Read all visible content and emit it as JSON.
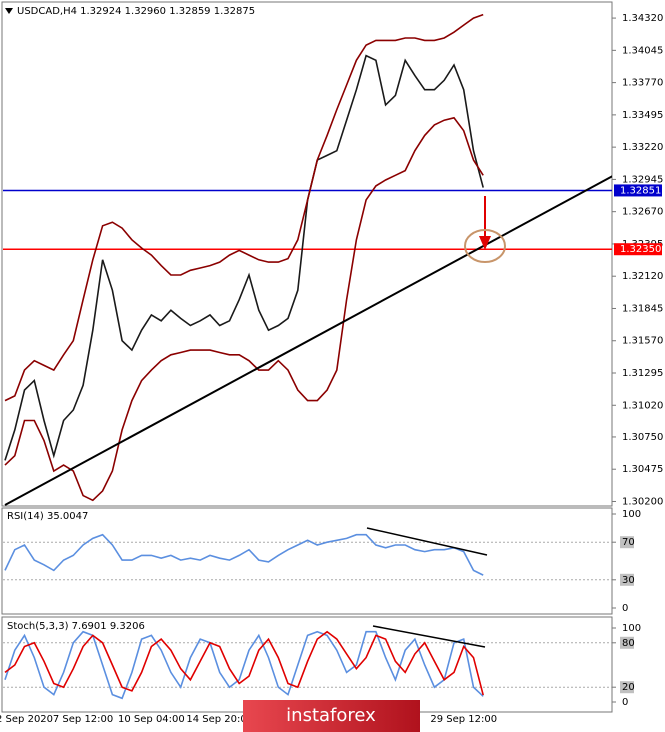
{
  "chart_data": [
    {
      "type": "line",
      "title": "USDCAD,H4 1.32924 1.32960 1.32859 1.32875",
      "ylim": [
        1.3017,
        1.3444
      ],
      "yticks": [
        {
          "value": 1.3432,
          "label": "1.34320"
        },
        1.34045,
        {
          "value": 1.3377,
          "label": "1.33770"
        },
        1.33495,
        {
          "value": 1.3322,
          "label": "1.33220"
        },
        1.32945,
        {
          "value": 1.3267,
          "label": "1.32670"
        },
        1.32395,
        {
          "value": 1.3212,
          "label": "1.32120"
        },
        1.31845,
        {
          "value": 1.3157,
          "label": "1.31570"
        },
        1.31295,
        {
          "value": 1.3102,
          "label": "1.31020"
        },
        {
          "value": 1.3075,
          "label": "1.30750"
        },
        1.30475,
        {
          "value": 1.302,
          "label": "1.30200"
        }
      ],
      "grid": false,
      "levels": [
        {
          "value": 1.32851,
          "color": "#0000cc"
        },
        {
          "value": 1.3235,
          "label": "1.32350",
          "color": "#ff0000"
        }
      ],
      "series": [
        {
          "color": "#1a1a1a",
          "values": [
            1.3055,
            1.3081,
            1.3115,
            1.3123,
            1.3089,
            1.3059,
            1.3089,
            1.3098,
            1.3119,
            1.3166,
            1.3226,
            1.32,
            1.3157,
            1.3149,
            1.3166,
            1.3179,
            1.3174,
            1.3183,
            1.3176,
            1.317,
            1.3174,
            1.3179,
            1.317,
            1.3174,
            1.3192,
            1.3213,
            1.3183,
            1.3166,
            1.317,
            1.3176,
            1.32,
            1.3277,
            1.3311,
            1.3315,
            1.3319,
            1.3345,
            1.3371,
            1.34,
            1.3396,
            1.3358,
            1.3366,
            1.3396,
            1.3383,
            1.3371,
            1.3371,
            1.3379,
            1.3392,
            1.3371,
            1.3319,
            1.32875
          ]
        },
        {
          "color": "#8b0000",
          "values": [
            1.3106,
            1.311,
            1.3132,
            1.314,
            1.3136,
            1.3132,
            1.3145,
            1.3157,
            1.3192,
            1.3226,
            1.3255,
            1.3258,
            1.3253,
            1.3243,
            1.3236,
            1.323,
            1.3221,
            1.3213,
            1.3213,
            1.3217,
            1.3219,
            1.3221,
            1.3224,
            1.323,
            1.3234,
            1.323,
            1.3226,
            1.3224,
            1.3224,
            1.3227,
            1.3243,
            1.3277,
            1.3311,
            1.3332,
            1.3354,
            1.3375,
            1.3396,
            1.3409,
            1.3413,
            1.3413,
            1.3413,
            1.3415,
            1.3415,
            1.3413,
            1.3413,
            1.3415,
            1.342,
            1.3426,
            1.3432,
            1.3435
          ]
        },
        {
          "color": "#8b0000",
          "values": [
            1.3051,
            1.3059,
            1.3089,
            1.3089,
            1.3072,
            1.3046,
            1.3051,
            1.3046,
            1.3025,
            1.3021,
            1.3029,
            1.3046,
            1.3081,
            1.3106,
            1.3123,
            1.3132,
            1.314,
            1.3145,
            1.3147,
            1.3149,
            1.3149,
            1.3149,
            1.3147,
            1.3145,
            1.3145,
            1.314,
            1.3132,
            1.3132,
            1.314,
            1.3132,
            1.3115,
            1.3106,
            1.3106,
            1.3115,
            1.3132,
            1.3192,
            1.3243,
            1.3277,
            1.3289,
            1.3294,
            1.3298,
            1.3302,
            1.3319,
            1.3332,
            1.3341,
            1.3345,
            1.3347,
            1.3336,
            1.3311,
            1.3298
          ]
        }
      ]
    },
    {
      "type": "line",
      "title": "RSI(14) 35.0047",
      "ylim": [
        0,
        100
      ],
      "yticks": [
        100,
        70,
        30,
        0
      ],
      "grid": true,
      "series": [
        {
          "color": "#5b8fe0",
          "values": [
            40,
            62,
            67,
            51,
            46,
            40,
            51,
            56,
            67,
            74,
            78,
            67,
            51,
            51,
            56,
            56,
            53,
            56,
            51,
            53,
            51,
            56,
            53,
            51,
            56,
            62,
            51,
            49,
            56,
            62,
            67,
            72,
            67,
            70,
            72,
            74,
            78,
            78,
            67,
            64,
            67,
            67,
            62,
            60,
            62,
            62,
            64,
            60,
            40,
            35.0047
          ]
        }
      ]
    },
    {
      "type": "line",
      "title": "Stoch(5,3,3) 7.6901 9.3206",
      "ylim": [
        0,
        100
      ],
      "yticks": [
        100,
        80,
        20,
        0
      ],
      "grid": true,
      "categories": [
        null,
        null,
        "2 Sep 2020",
        null,
        null,
        null,
        null,
        null,
        "7 Sep 12:00",
        null,
        null,
        null,
        null,
        null,
        null,
        "10 Sep 04:00",
        null,
        null,
        null,
        null,
        null,
        null,
        "14 Sep 20:00",
        null,
        null,
        null,
        null,
        null,
        null,
        null,
        null,
        null,
        null,
        null,
        null,
        null,
        null,
        null,
        null,
        null,
        null,
        null,
        null,
        null,
        null,
        null,
        null,
        "29 Sep 12:00",
        null,
        null
      ],
      "series": [
        {
          "color": "#5b8fe0",
          "values": [
            30,
            70,
            90,
            60,
            20,
            10,
            40,
            80,
            95,
            90,
            50,
            10,
            5,
            40,
            85,
            90,
            70,
            40,
            20,
            60,
            85,
            80,
            40,
            20,
            30,
            70,
            90,
            60,
            20,
            10,
            50,
            90,
            95,
            90,
            70,
            40,
            50,
            95,
            95,
            60,
            30,
            70,
            85,
            50,
            20,
            30,
            80,
            85,
            20,
            7.6901
          ]
        },
        {
          "color": "#e00000",
          "values": [
            40,
            50,
            75,
            80,
            55,
            25,
            20,
            45,
            75,
            90,
            80,
            50,
            20,
            15,
            40,
            75,
            85,
            70,
            45,
            30,
            55,
            80,
            75,
            45,
            25,
            35,
            70,
            85,
            60,
            25,
            20,
            55,
            85,
            95,
            85,
            65,
            45,
            60,
            90,
            85,
            55,
            40,
            65,
            80,
            55,
            30,
            40,
            75,
            60,
            9.3206
          ]
        }
      ]
    }
  ],
  "watermark": "instaforex"
}
